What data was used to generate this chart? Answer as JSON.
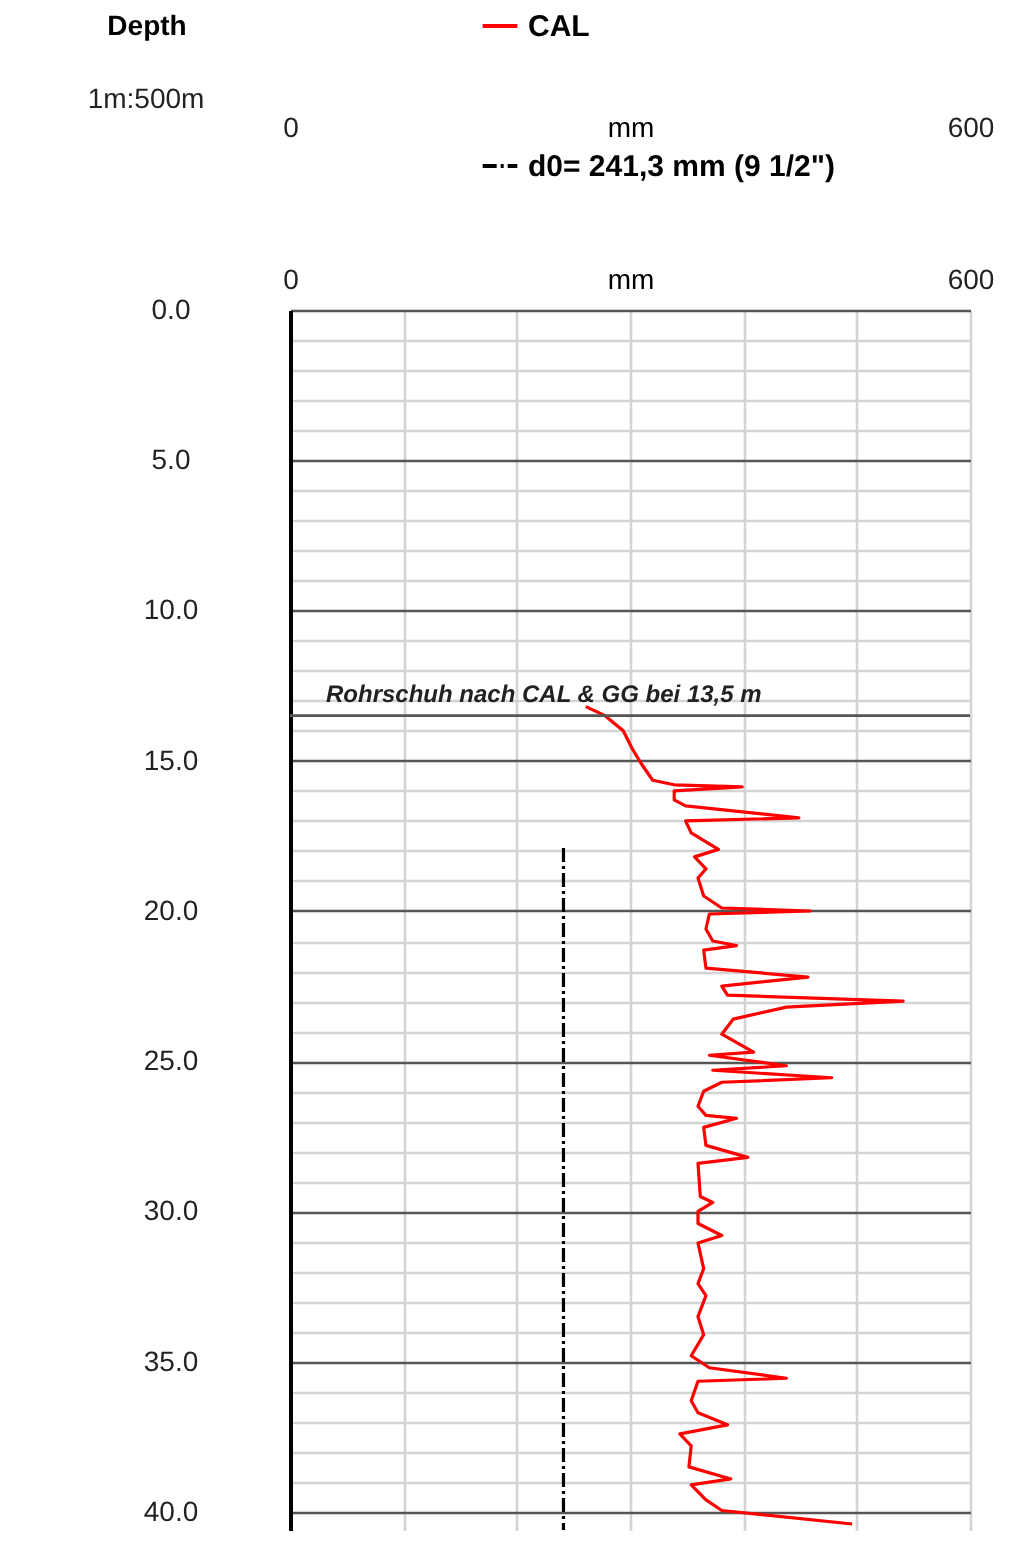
{
  "chart_data": {
    "type": "line",
    "ylabel": "Depth",
    "xlabel": "mm",
    "x2label": "mm",
    "annotations": [
      "1m:500m"
    ],
    "xlim": [
      0,
      600
    ],
    "x2lim": [
      0,
      600
    ],
    "xticks": [
      0,
      {
        "value": 100,
        "label": null
      },
      {
        "value": 200,
        "label": null
      },
      {
        "value": 300,
        "label": null
      },
      {
        "value": 400,
        "label": null
      },
      {
        "value": 500,
        "label": null
      },
      600
    ],
    "x2ticks": [
      0,
      600
    ],
    "ylim": [
      40.6,
      0
    ],
    "yticks": [
      {
        "value": 0,
        "label": "0.0"
      },
      {
        "value": 1,
        "label": null
      },
      {
        "value": 2,
        "label": null
      },
      {
        "value": 3,
        "label": null
      },
      {
        "value": 4,
        "label": null
      },
      {
        "value": 5,
        "label": "5.0"
      },
      {
        "value": 6,
        "label": null
      },
      {
        "value": 7,
        "label": null
      },
      {
        "value": 8,
        "label": null
      },
      {
        "value": 9,
        "label": null
      },
      {
        "value": 10,
        "label": "10.0"
      },
      {
        "value": 11,
        "label": null
      },
      {
        "value": 12,
        "label": null
      },
      {
        "value": 13,
        "label": null
      },
      {
        "value": 14,
        "label": null
      },
      {
        "value": 15,
        "label": "15.0"
      },
      {
        "value": 16,
        "label": null
      },
      {
        "value": 17,
        "label": null
      },
      {
        "value": 18,
        "label": null
      },
      {
        "value": 19,
        "label": null
      },
      {
        "value": 20,
        "label": "20.0"
      },
      {
        "value": 21,
        "label": null
      },
      {
        "value": 22,
        "label": null
      },
      {
        "value": 23,
        "label": null
      },
      {
        "value": 24,
        "label": null
      },
      {
        "value": 25,
        "label": "25.0"
      },
      {
        "value": 26,
        "label": null
      },
      {
        "value": 27,
        "label": null
      },
      {
        "value": 28,
        "label": null
      },
      {
        "value": 29,
        "label": null
      },
      {
        "value": 30,
        "label": "30.0"
      },
      {
        "value": 31,
        "label": null
      },
      {
        "value": 32,
        "label": null
      },
      {
        "value": 33,
        "label": null
      },
      {
        "value": 34,
        "label": null
      },
      {
        "value": 35,
        "label": "35.0"
      },
      {
        "value": 36,
        "label": null
      },
      {
        "value": 37,
        "label": null
      },
      {
        "value": 38,
        "label": null
      },
      {
        "value": 39,
        "label": null
      },
      {
        "value": 40,
        "label": "40.0"
      }
    ],
    "grid": true,
    "legend": "top",
    "ref_lines": [
      {
        "axis": "y",
        "value": 13.5,
        "label": "Rohrschuh nach CAL & GG bei 13,5 m",
        "color": "#555555"
      }
    ],
    "series": [
      {
        "name": "CAL",
        "color": "#ff0000",
        "line_style": "solid",
        "axis": "x2",
        "x": [
          261,
          278,
          294,
          302,
          310,
          320,
          339,
          399,
          339,
          339,
          349,
          449,
          349,
          354,
          378,
          357,
          367,
          360,
          365,
          381,
          459,
          370,
          367,
          373,
          394,
          365,
          367,
          457,
          381,
          386,
          541,
          438,
          391,
          381,
          409,
          370,
          438,
          373,
          478,
          381,
          365,
          360,
          367,
          394,
          365,
          367,
          404,
          360,
          362,
          373,
          360,
          360,
          381,
          360,
          365,
          360,
          367,
          360,
          365,
          354,
          370,
          438,
          360,
          354,
          360,
          386,
          344,
          354,
          352,
          389,
          354,
          367,
          381,
          496
        ],
        "values": [
          13.2,
          13.5,
          14.0,
          14.6,
          15.1,
          15.65,
          15.8,
          15.87,
          16.0,
          16.3,
          16.5,
          16.9,
          17.0,
          17.4,
          17.95,
          18.2,
          18.6,
          18.9,
          19.5,
          19.9,
          20.0,
          20.1,
          20.6,
          21.0,
          21.15,
          21.3,
          21.9,
          22.2,
          22.5,
          22.8,
          23.0,
          23.2,
          23.6,
          24.1,
          24.7,
          24.8,
          25.15,
          25.3,
          25.55,
          25.7,
          26.0,
          26.5,
          26.8,
          26.9,
          27.2,
          27.8,
          28.2,
          28.4,
          29.5,
          29.7,
          30.0,
          30.4,
          30.8,
          31.05,
          31.9,
          32.4,
          32.8,
          33.5,
          34.1,
          34.8,
          35.2,
          35.55,
          35.65,
          36.3,
          36.7,
          37.1,
          37.4,
          37.8,
          38.5,
          38.9,
          39.1,
          39.6,
          39.95,
          40.4
        ]
      },
      {
        "name": "d0= 241,3 mm (9 1/2\")",
        "color": "#000000",
        "line_style": "dashed",
        "x": [
          241.3,
          241.3
        ],
        "values": [
          17.9,
          40.6
        ]
      }
    ]
  }
}
